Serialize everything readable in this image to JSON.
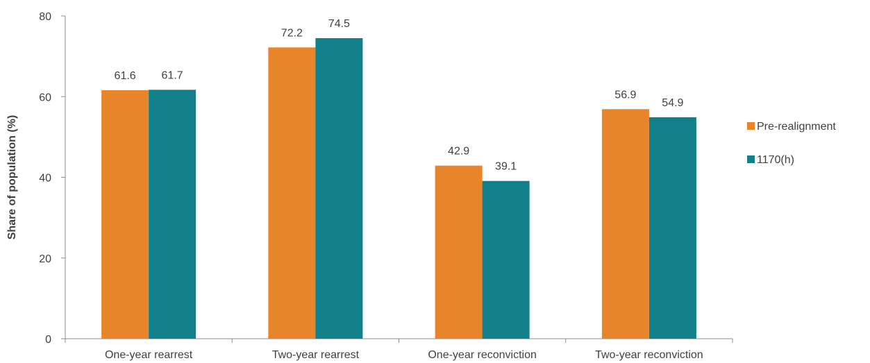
{
  "colors": {
    "pre": "#e8852a",
    "post": "#11808a",
    "axis": "#8c8c8c",
    "text": "#404040"
  },
  "chart_data": {
    "type": "bar",
    "title": "",
    "xlabel": "",
    "ylabel": "Share of population (%)",
    "ylim": [
      0,
      80
    ],
    "yticks": [
      0,
      20,
      40,
      60,
      80
    ],
    "categories": [
      "One-year rearrest",
      "Two-year rearrest",
      "One-year reconviction",
      "Two-year reconviction"
    ],
    "series": [
      {
        "name": "Pre-realignment",
        "values": [
          61.6,
          72.2,
          42.9,
          56.9
        ],
        "labels": [
          "61.6",
          "72.2",
          "42.9",
          "56.9"
        ]
      },
      {
        "name": "1170(h)",
        "values": [
          61.7,
          74.5,
          39.1,
          54.9
        ],
        "labels": [
          "61.7",
          "74.5",
          "39.1",
          "54.9"
        ]
      }
    ],
    "grid": false,
    "legend_position": "right"
  }
}
